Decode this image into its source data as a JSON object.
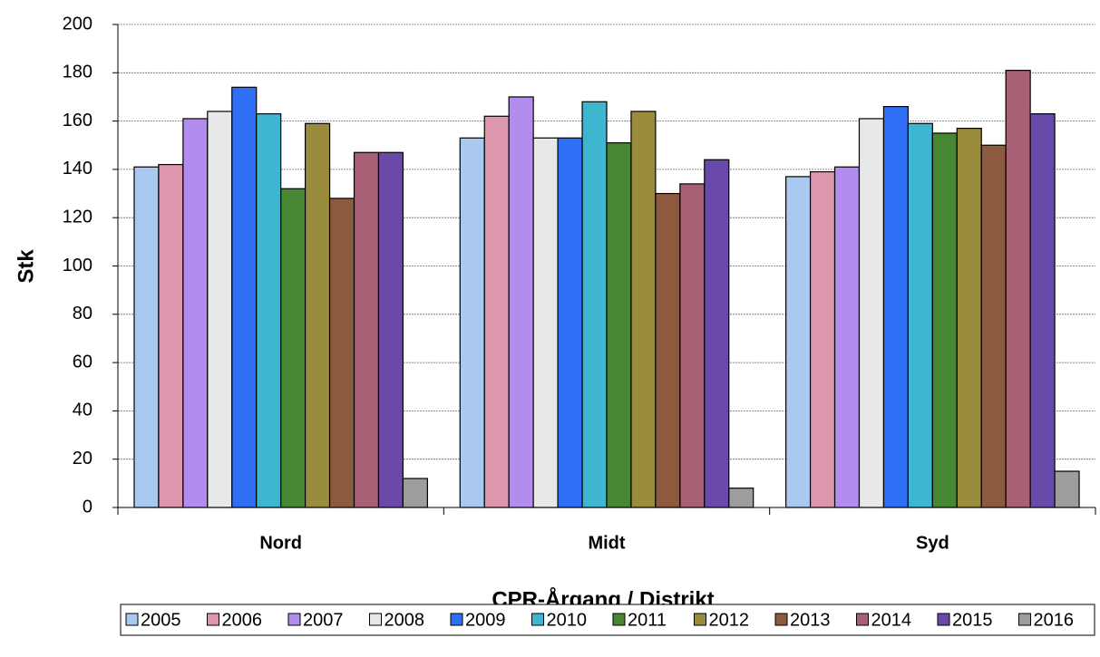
{
  "chart_data": {
    "type": "bar",
    "x_label": "CPR-Årgang / Distrikt",
    "y_label": "Stk",
    "categories": [
      "Nord",
      "Midt",
      "Syd"
    ],
    "series": [
      {
        "name": "2005",
        "color": "#a9c9f0",
        "values": [
          141,
          153,
          137
        ]
      },
      {
        "name": "2006",
        "color": "#dc97ad",
        "values": [
          142,
          162,
          139
        ]
      },
      {
        "name": "2007",
        "color": "#b38ded",
        "values": [
          161,
          170,
          141
        ]
      },
      {
        "name": "2008",
        "color": "#e8e8e8",
        "values": [
          164,
          153,
          161
        ]
      },
      {
        "name": "2009",
        "color": "#2f6ff5",
        "values": [
          174,
          153,
          166
        ]
      },
      {
        "name": "2010",
        "color": "#3fb6d0",
        "values": [
          163,
          168,
          159
        ]
      },
      {
        "name": "2011",
        "color": "#478632",
        "values": [
          132,
          151,
          155
        ]
      },
      {
        "name": "2012",
        "color": "#9a8c3c",
        "values": [
          159,
          164,
          157
        ]
      },
      {
        "name": "2013",
        "color": "#8e5a3f",
        "values": [
          128,
          130,
          150
        ]
      },
      {
        "name": "2014",
        "color": "#a86074",
        "values": [
          147,
          134,
          181
        ]
      },
      {
        "name": "2015",
        "color": "#6a4aa8",
        "values": [
          147,
          144,
          163
        ]
      },
      {
        "name": "2016",
        "color": "#9d9d9d",
        "values": [
          12,
          8,
          15
        ]
      }
    ],
    "ylim": [
      0,
      200
    ],
    "yticks": [
      0,
      20,
      40,
      60,
      80,
      100,
      120,
      140,
      160,
      180,
      200
    ],
    "grid": true,
    "legend": "bottom"
  }
}
